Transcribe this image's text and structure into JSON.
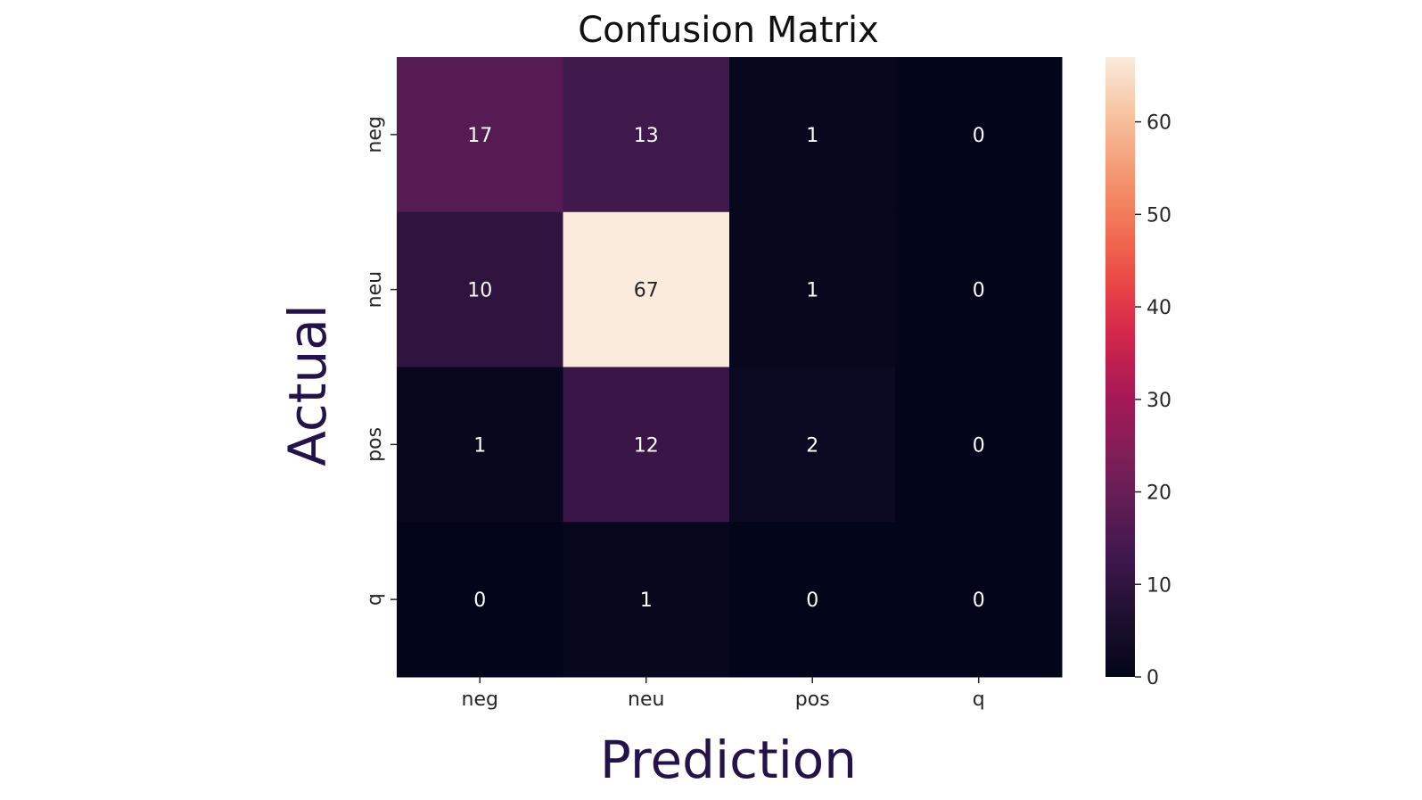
{
  "chart_data": {
    "type": "heatmap",
    "title": "Confusion Matrix",
    "xlabel": "Prediction",
    "ylabel": "Actual",
    "x_categories": [
      "neg",
      "neu",
      "pos",
      "q"
    ],
    "y_categories": [
      "neg",
      "neu",
      "pos",
      "q"
    ],
    "values": [
      [
        17,
        13,
        1,
        0
      ],
      [
        10,
        67,
        1,
        0
      ],
      [
        1,
        12,
        2,
        0
      ],
      [
        0,
        1,
        0,
        0
      ]
    ],
    "colorbar": {
      "range": [
        0,
        67
      ],
      "ticks": [
        0,
        10,
        20,
        30,
        40,
        50,
        60
      ],
      "colormap": "rocket"
    },
    "grid": false,
    "legend": "none"
  }
}
